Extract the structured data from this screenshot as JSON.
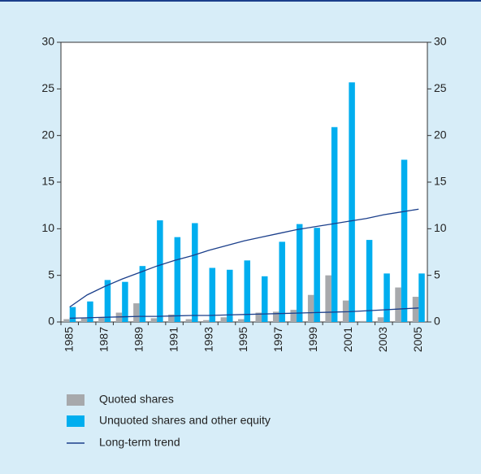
{
  "chart_data": {
    "type": "bar",
    "categories": [
      "1985",
      null,
      "1987",
      null,
      "1989",
      null,
      "1991",
      null,
      "1993",
      null,
      "1995",
      null,
      "1997",
      null,
      "1999",
      null,
      "2001",
      null,
      "2003",
      null,
      "2005"
    ],
    "series": [
      {
        "name": "Quoted shares",
        "color": "#a7a9ac",
        "values": [
          0.3,
          0.4,
          0.5,
          1.0,
          2.0,
          0.4,
          0.8,
          0.3,
          0.2,
          0.5,
          0.3,
          1.0,
          1.1,
          1.3,
          2.9,
          5.0,
          2.3,
          0.1,
          0.5,
          3.7,
          2.7
        ]
      },
      {
        "name": "Unquoted shares and other equity",
        "color": "#00aeef",
        "values": [
          1.6,
          2.2,
          4.5,
          4.3,
          6.0,
          10.9,
          9.1,
          10.6,
          5.8,
          5.6,
          6.6,
          4.9,
          8.6,
          10.5,
          10.1,
          20.9,
          25.7,
          8.8,
          5.2,
          17.4,
          5.2
        ]
      }
    ],
    "trend": {
      "name": "Long-term trend",
      "color": "#1b3f8b",
      "lines": [
        [
          1.6,
          2.9,
          3.8,
          4.6,
          5.3,
          6.0,
          6.6,
          7.1,
          7.7,
          8.2,
          8.7,
          9.1,
          9.5,
          9.9,
          10.2,
          10.5,
          10.8,
          11.1,
          11.5,
          11.8,
          12.1
        ],
        [
          0.4,
          0.45,
          0.5,
          0.55,
          0.6,
          0.6,
          0.65,
          0.7,
          0.7,
          0.75,
          0.8,
          0.85,
          0.9,
          0.95,
          1.0,
          1.05,
          1.1,
          1.2,
          1.3,
          1.4,
          1.5
        ]
      ]
    },
    "ylim": [
      0,
      30
    ],
    "yticks": [
      0,
      5,
      10,
      15,
      20,
      25,
      30
    ],
    "y2lim": [
      0,
      30
    ],
    "y2ticks": [
      0,
      5,
      10,
      15,
      20,
      25,
      30
    ]
  }
}
